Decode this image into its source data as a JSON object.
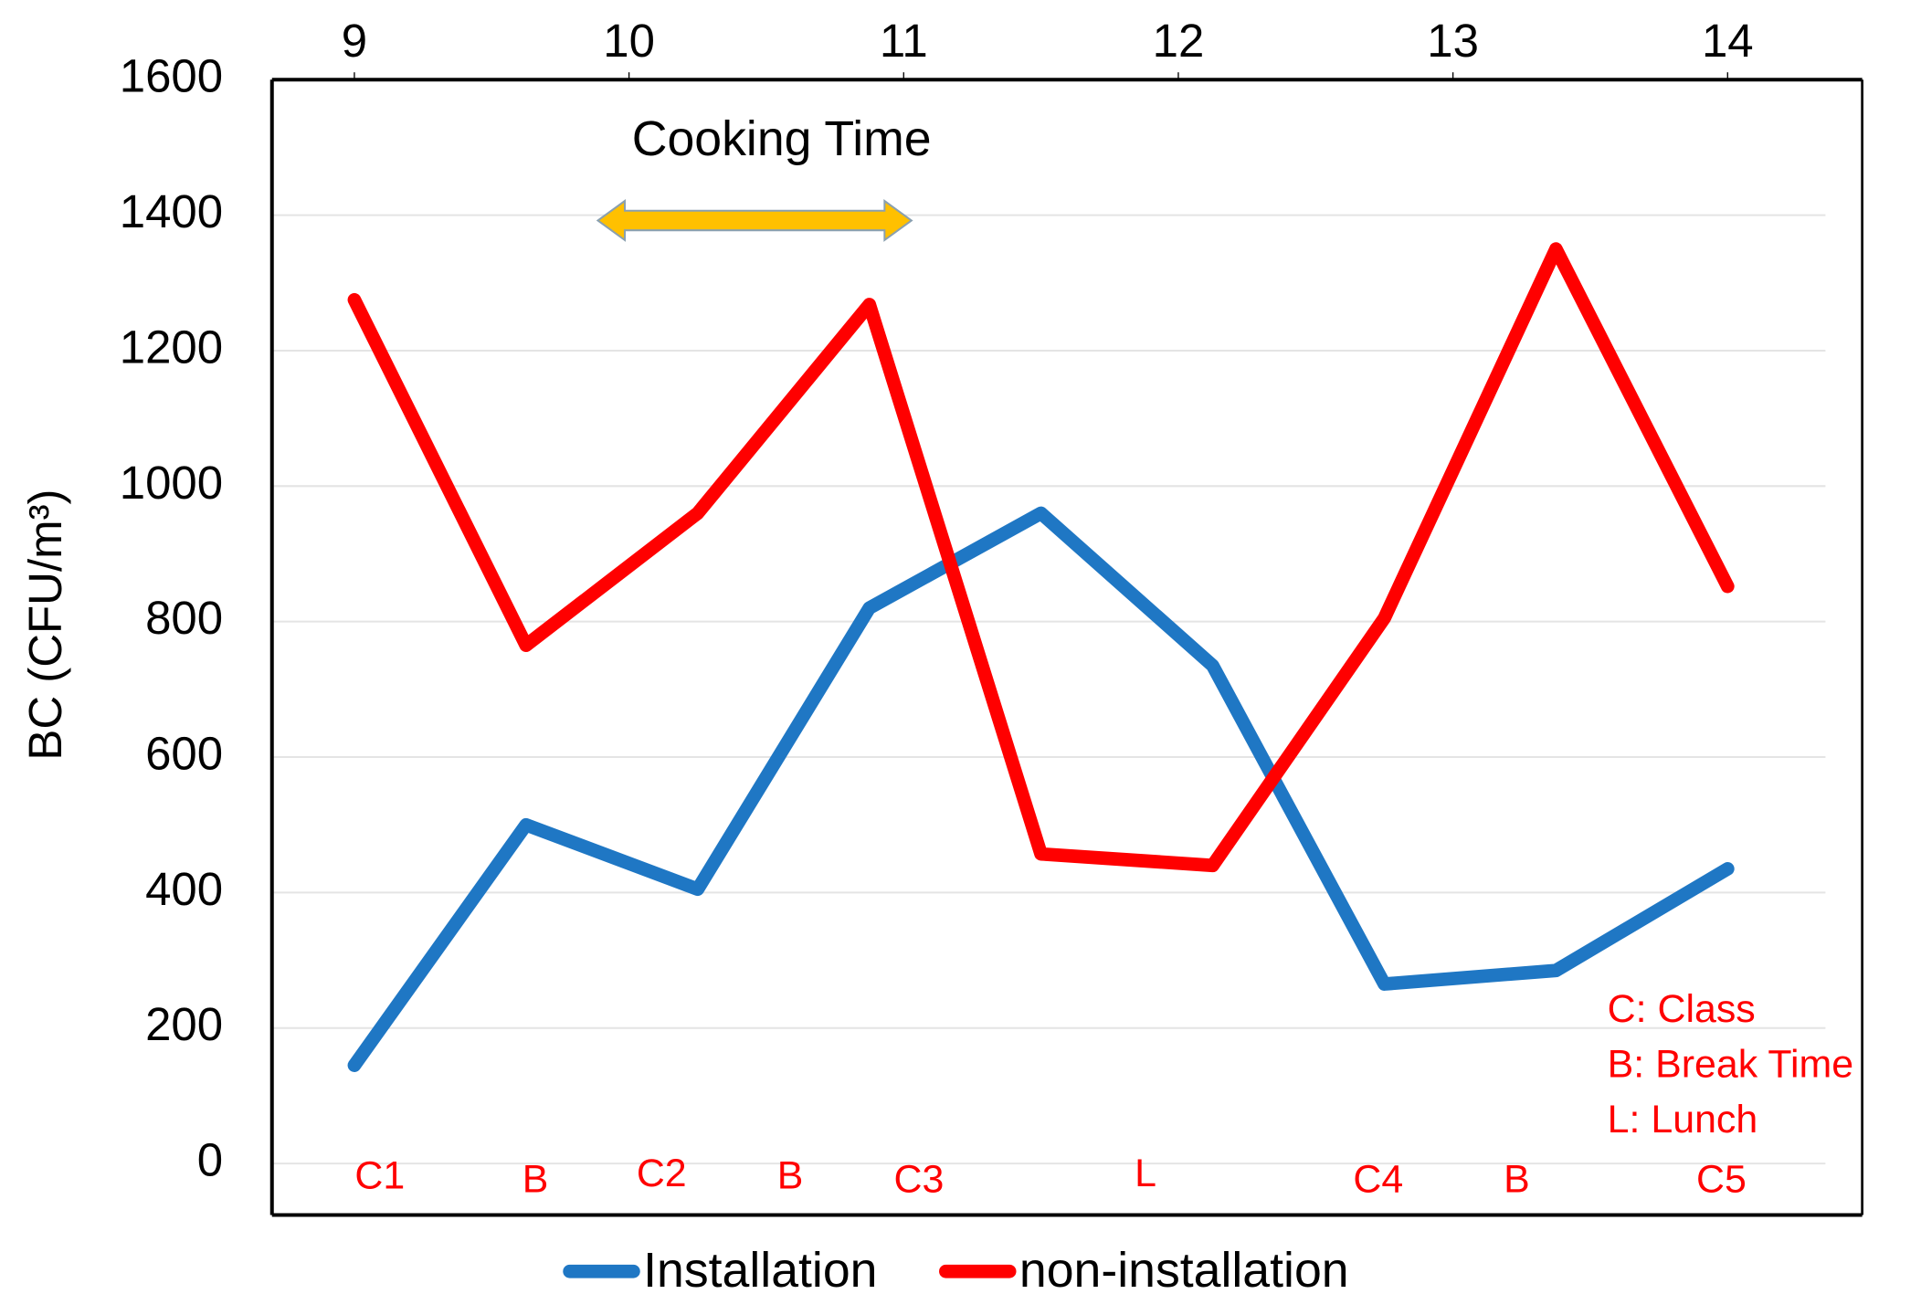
{
  "chart_data": {
    "type": "line",
    "ylabel": "BC (CFU/m³)",
    "x": [
      9,
      9.625,
      10.25,
      10.875,
      11.5,
      12.125,
      12.75,
      13.375,
      14
    ],
    "xlim": [
      8.7,
      14.49
    ],
    "xticks": [
      9,
      10,
      11,
      12,
      13,
      14
    ],
    "ylim": [
      -76,
      1600
    ],
    "yticks": [
      0,
      200,
      400,
      600,
      800,
      1000,
      1200,
      1400,
      1600
    ],
    "grid": true,
    "series": [
      {
        "name": "Installation",
        "color": "#1f77c4",
        "values": [
          145,
          500,
          405,
          820,
          960,
          735,
          265,
          285,
          435
        ]
      },
      {
        "name": "non-installation",
        "color": "#ff0000",
        "values": [
          1275,
          765,
          960,
          1268,
          457,
          440,
          805,
          1350,
          852
        ]
      }
    ],
    "annotations": {
      "cooking": "Cooking Time",
      "periods": [
        "C1",
        "B",
        "C2",
        "B",
        "C3",
        "L",
        "C4",
        "B",
        "C5"
      ],
      "key": [
        "C: Class",
        "B: Break Time",
        "L: Lunch"
      ]
    }
  }
}
